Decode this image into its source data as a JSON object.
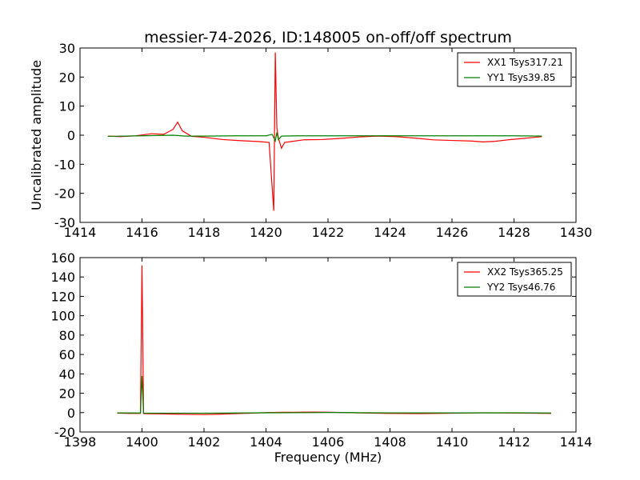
{
  "chart_data": [
    {
      "type": "line",
      "title": "messier-74-2026, ID:148005 on-off/off spectrum",
      "xlabel": "",
      "ylabel": "Uncalibrated amplitude",
      "xlim": [
        1414,
        1430
      ],
      "ylim": [
        -30,
        30
      ],
      "xticks": [
        1414,
        1416,
        1418,
        1420,
        1422,
        1424,
        1426,
        1428,
        1430
      ],
      "yticks": [
        -30,
        -20,
        -10,
        0,
        10,
        20,
        30
      ],
      "grid": false,
      "legend_position": "top-right",
      "series": [
        {
          "name": "XX1 Tsys317.21",
          "color": "#ff0000",
          "x": [
            1414.9,
            1415.3,
            1415.8,
            1416.3,
            1416.7,
            1417.0,
            1417.15,
            1417.3,
            1417.6,
            1418.0,
            1418.6,
            1419.2,
            1419.8,
            1420.1,
            1420.25,
            1420.3,
            1420.35,
            1420.4,
            1420.5,
            1420.6,
            1420.8,
            1421.2,
            1421.8,
            1422.4,
            1423.0,
            1423.6,
            1424.2,
            1424.8,
            1425.4,
            1426.0,
            1426.6,
            1427.0,
            1427.4,
            1427.8,
            1428.2,
            1428.6,
            1428.9
          ],
          "values": [
            -0.3,
            -0.5,
            -0.2,
            0.5,
            0.3,
            2.0,
            4.5,
            1.5,
            -0.4,
            -0.7,
            -1.5,
            -1.9,
            -2.2,
            -2.5,
            -26.0,
            28.5,
            2.5,
            -1.0,
            -4.5,
            -2.5,
            -2.2,
            -1.6,
            -1.5,
            -1.1,
            -0.6,
            -0.3,
            -0.5,
            -1.0,
            -1.6,
            -1.8,
            -2.0,
            -2.3,
            -2.1,
            -1.6,
            -1.2,
            -0.8,
            -0.5
          ]
        },
        {
          "name": "YY1 Tsys39.85",
          "color": "#008000",
          "x": [
            1414.9,
            1416.0,
            1417.0,
            1417.4,
            1418.0,
            1419.0,
            1420.0,
            1420.2,
            1420.3,
            1420.35,
            1420.4,
            1420.5,
            1421.0,
            1422.0,
            1424.0,
            1426.0,
            1428.0,
            1428.9
          ],
          "values": [
            -0.4,
            -0.2,
            0.0,
            -0.3,
            -0.3,
            -0.2,
            -0.2,
            0.3,
            -2.0,
            1.0,
            -1.5,
            -0.3,
            -0.2,
            -0.2,
            -0.2,
            -0.2,
            -0.2,
            -0.3
          ]
        }
      ]
    },
    {
      "type": "line",
      "title": "",
      "xlabel": "Frequency (MHz)",
      "ylabel": "",
      "xlim": [
        1398,
        1414
      ],
      "ylim": [
        -20,
        160
      ],
      "xticks": [
        1398,
        1400,
        1402,
        1404,
        1406,
        1408,
        1410,
        1412,
        1414
      ],
      "yticks": [
        -20,
        0,
        20,
        40,
        60,
        80,
        100,
        120,
        140,
        160
      ],
      "grid": false,
      "legend_position": "top-right",
      "series": [
        {
          "name": "XX2 Tsys365.25",
          "color": "#ff0000",
          "x": [
            1399.2,
            1399.6,
            1399.95,
            1400.0,
            1400.05,
            1400.5,
            1401.0,
            1401.5,
            1402.0,
            1402.5,
            1403.0,
            1403.5,
            1404.0,
            1404.5,
            1405.0,
            1405.5,
            1406.0,
            1407.0,
            1408.0,
            1409.0,
            1410.0,
            1411.0,
            1412.0,
            1412.6,
            1413.2
          ],
          "values": [
            -0.5,
            -0.8,
            -0.8,
            152.0,
            -1.0,
            -1.2,
            -1.5,
            -1.8,
            -2.0,
            -1.6,
            -1.0,
            -0.6,
            0.0,
            0.3,
            0.4,
            0.6,
            0.5,
            -0.3,
            -0.8,
            -1.0,
            -0.6,
            -0.2,
            -0.4,
            -0.6,
            -0.8
          ]
        },
        {
          "name": "YY2 Tsys46.76",
          "color": "#008000",
          "x": [
            1399.2,
            1399.95,
            1400.0,
            1400.05,
            1402.0,
            1404.0,
            1406.0,
            1408.0,
            1410.0,
            1412.0,
            1413.2
          ],
          "values": [
            -0.3,
            -0.4,
            38.0,
            -0.5,
            -0.6,
            -0.2,
            0.1,
            -0.3,
            -0.3,
            -0.2,
            -0.4
          ]
        }
      ]
    }
  ]
}
